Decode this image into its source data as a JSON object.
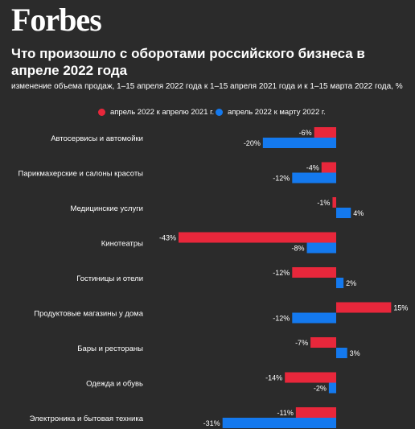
{
  "logo": "Forbes",
  "colors": {
    "background": "#2b2b2b",
    "series_apr_2021": "#e8273b",
    "series_mar_2022": "#1479ee"
  },
  "chart_data": {
    "type": "bar",
    "orientation": "horizontal",
    "title": "Что произошло с оборотами российского бизнеса в апреле 2022 года",
    "subtitle": "изменение объема продаж, 1–15 апреля 2022 года к 1–15 апреля 2021 года и к 1–15 марта 2022 года, %",
    "legend_placement": "top",
    "grid": false,
    "categories": [
      "Автосервисы и автомойки",
      "Парикмахерские и салоны красоты",
      "Медицинские услуги",
      "Кинотеатры",
      "Гостиницы и отели",
      "Продуктовые магазины у дома",
      "Бары и рестораны",
      "Одежда и обувь",
      "Электроника и бытовая техника"
    ],
    "series": [
      {
        "name": "апрель 2022 к апрелю 2021 г.",
        "color": "#e8273b",
        "values": [
          -6,
          -4,
          -1,
          -43,
          -12,
          15,
          -7,
          -14,
          -11
        ]
      },
      {
        "name": "апрель 2022 к марту 2022 г.",
        "color": "#1479ee",
        "values": [
          -20,
          -12,
          4,
          -8,
          2,
          -12,
          3,
          -2,
          -31
        ]
      }
    ],
    "value_suffix": "%",
    "xlim": [
      -45,
      17
    ]
  }
}
